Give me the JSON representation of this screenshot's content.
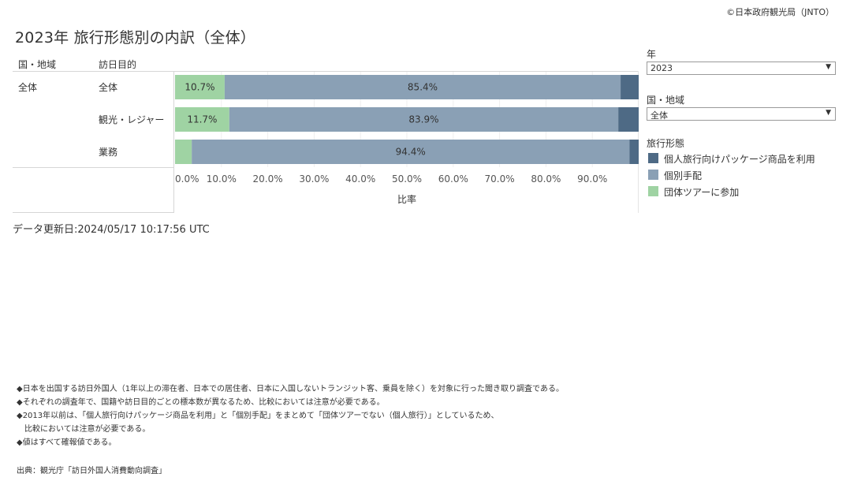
{
  "copyright": "©日本政府観光局（JNTO）",
  "title": "2023年 旅行形態別の内訳（全体）",
  "headers": {
    "country": "国・地域",
    "purpose": "訪日目的"
  },
  "rows": [
    {
      "country": "全体",
      "purpose": "全体"
    },
    {
      "country": "",
      "purpose": "観光・レジャー"
    },
    {
      "country": "",
      "purpose": "業務"
    }
  ],
  "updated": "データ更新日:2024/05/17 10:17:56 UTC",
  "filters": {
    "year": {
      "label": "年",
      "value": "2023"
    },
    "country": {
      "label": "国・地域",
      "value": "全体"
    }
  },
  "legend": {
    "title": "旅行形態",
    "items": [
      {
        "label": "個人旅行向けパッケージ商品を利用",
        "color": "#4e6a85"
      },
      {
        "label": "個別手配",
        "color": "#8aa0b5"
      },
      {
        "label": "団体ツアーに参加",
        "color": "#9fd3a3"
      }
    ]
  },
  "notes": [
    "◆日本を出国する訪日外国人（1年以上の滞在者、日本での居住者、日本に入国しないトランジット客、乗員を除く）を対象に行った聞き取り調査である。",
    "◆それぞれの調査年で、国籍や訪日目的ごとの標本数が異なるため、比較においては注意が必要である。",
    "◆2013年以前は、「個人旅行向けパッケージ商品を利用」と「個別手配」をまとめて「団体ツアーでない（個人旅行）」としているため、",
    "　比較においては注意が必要である。",
    "◆値はすべて確報値である。"
  ],
  "source": "出典：観光庁「訪日外国人消費動向調査」",
  "chart_data": {
    "type": "bar",
    "orientation": "horizontal",
    "stacked": true,
    "categories": [
      "全体",
      "観光・レジャー",
      "業務"
    ],
    "series": [
      {
        "name": "団体ツアーに参加",
        "values": [
          10.7,
          11.7,
          3.6
        ],
        "labels": [
          "10.7%",
          "11.7%",
          ""
        ],
        "color": "#9fd3a3"
      },
      {
        "name": "個別手配",
        "values": [
          85.4,
          83.9,
          94.4
        ],
        "labels": [
          "85.4%",
          "83.9%",
          "94.4%"
        ],
        "color": "#8aa0b5"
      },
      {
        "name": "個人旅行向けパッケージ商品を利用",
        "values": [
          3.9,
          4.4,
          2.0
        ],
        "labels": [
          "",
          "",
          ""
        ],
        "color": "#4e6a85"
      }
    ],
    "xlim": [
      0,
      100
    ],
    "xticks": [
      "0.0%",
      "10.0%",
      "20.0%",
      "30.0%",
      "40.0%",
      "50.0%",
      "60.0%",
      "70.0%",
      "80.0%",
      "90.0%"
    ],
    "xlabel": "比率",
    "legend_position": "right"
  }
}
